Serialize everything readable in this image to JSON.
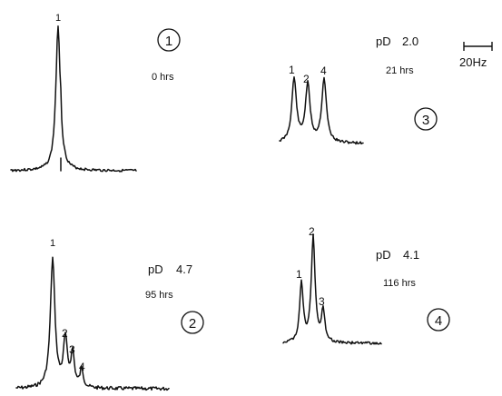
{
  "chart_data": [
    {
      "type": "line",
      "panel": "1",
      "pd": "",
      "time": "0 hrs",
      "peak_labels": [
        "1"
      ],
      "peaks": [
        {
          "label": "1",
          "relative_height": 1.0
        }
      ]
    },
    {
      "type": "line",
      "panel": "2",
      "pd_label": "pD",
      "pd": "4.7",
      "time": "95 hrs",
      "peak_labels": [
        "1",
        "2",
        "3",
        "4"
      ],
      "peaks": [
        {
          "label": "1",
          "relative_height": 1.0
        },
        {
          "label": "2",
          "relative_height": 0.37
        },
        {
          "label": "3",
          "relative_height": 0.26
        },
        {
          "label": "4",
          "relative_height": 0.14
        }
      ]
    },
    {
      "type": "line",
      "panel": "3",
      "pd_label": "pD",
      "pd": "2.0",
      "time": "21 hrs",
      "peak_labels": [
        "1",
        "2",
        "4"
      ],
      "peaks": [
        {
          "label": "1",
          "relative_height": 1.0
        },
        {
          "label": "2",
          "relative_height": 0.9
        },
        {
          "label": "4",
          "relative_height": 1.0
        }
      ]
    },
    {
      "type": "line",
      "panel": "4",
      "pd_label": "pD",
      "pd": "4.1",
      "time": "116 hrs",
      "peak_labels": [
        "1",
        "2",
        "3"
      ],
      "peaks": [
        {
          "label": "1",
          "relative_height": 0.55
        },
        {
          "label": "2",
          "relative_height": 1.0
        },
        {
          "label": "3",
          "relative_height": 0.3
        }
      ]
    }
  ],
  "scale_bar": {
    "label": "20Hz",
    "hz": 20
  }
}
